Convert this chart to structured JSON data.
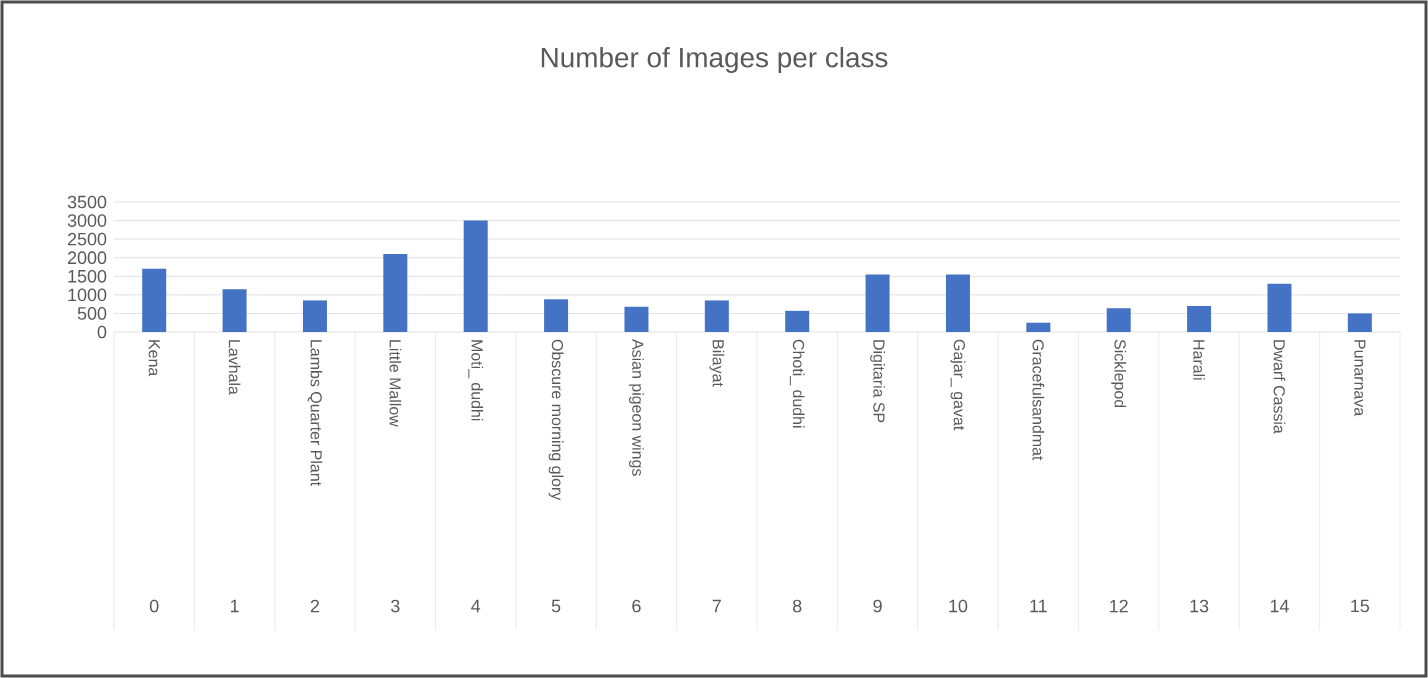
{
  "chart_data": {
    "type": "bar",
    "title": "Number of Images per class",
    "categories": [
      "Kena",
      "Lavhala",
      "Lambs Quarter Plant",
      "Little Mallow",
      "Moti_ dudhi",
      "Obscure morning glory",
      "Asian pigeon wings",
      "Bilayat",
      "Choti_ dudhi",
      "Digitaria SP",
      "Gajar_ gavat",
      "Gracefulsandmat",
      "Sicklepod",
      "Harali",
      "Dwarf Cassia",
      "Punarnava"
    ],
    "values": [
      1700,
      1150,
      850,
      2100,
      3000,
      880,
      680,
      850,
      570,
      1550,
      1550,
      250,
      640,
      700,
      1300,
      500
    ],
    "color": "#4472c4",
    "ylim": [
      0,
      3500
    ],
    "yticks": [
      0,
      500,
      1000,
      1500,
      2000,
      2500,
      3000,
      3500
    ],
    "grid": "y",
    "annotations": [
      "0",
      "1",
      "2",
      "3",
      "4",
      "5",
      "6",
      "7",
      "8",
      "9",
      "10",
      "11",
      "12",
      "13",
      "14",
      "15"
    ]
  }
}
